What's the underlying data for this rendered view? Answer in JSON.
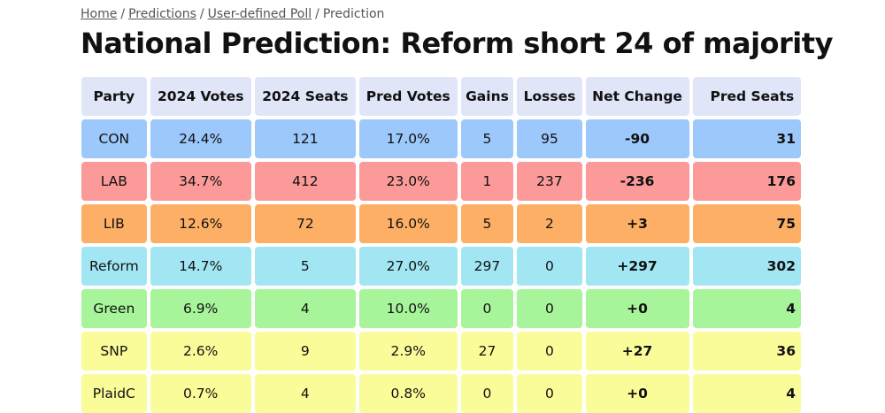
{
  "breadcrumb": {
    "home": "Home",
    "predictions": "Predictions",
    "poll": "User-defined Poll",
    "current": "Prediction",
    "separator": "/"
  },
  "title": "National Prediction: Reform short 24 of majority",
  "table": {
    "headers": [
      "Party",
      "2024 Votes",
      "2024 Seats",
      "Pred Votes",
      "Gains",
      "Losses",
      "Net Change",
      "Pred Seats"
    ],
    "rows": [
      {
        "party": "CON",
        "votes_2024": "24.4%",
        "seats_2024": "121",
        "pred_votes": "17.0%",
        "gains": "5",
        "losses": "95",
        "net_change": "-90",
        "pred_seats": "31",
        "color": "#9dc8fb"
      },
      {
        "party": "LAB",
        "votes_2024": "34.7%",
        "seats_2024": "412",
        "pred_votes": "23.0%",
        "gains": "1",
        "losses": "237",
        "net_change": "-236",
        "pred_seats": "176",
        "color": "#fb9a99"
      },
      {
        "party": "LIB",
        "votes_2024": "12.6%",
        "seats_2024": "72",
        "pred_votes": "16.0%",
        "gains": "5",
        "losses": "2",
        "net_change": "+3",
        "pred_seats": "75",
        "color": "#fdb065"
      },
      {
        "party": "Reform",
        "votes_2024": "14.7%",
        "seats_2024": "5",
        "pred_votes": "27.0%",
        "gains": "297",
        "losses": "0",
        "net_change": "+297",
        "pred_seats": "302",
        "color": "#a2e6f4"
      },
      {
        "party": "Green",
        "votes_2024": "6.9%",
        "seats_2024": "4",
        "pred_votes": "10.0%",
        "gains": "0",
        "losses": "0",
        "net_change": "+0",
        "pred_seats": "4",
        "color": "#a7f49a"
      },
      {
        "party": "SNP",
        "votes_2024": "2.6%",
        "seats_2024": "9",
        "pred_votes": "2.9%",
        "gains": "27",
        "losses": "0",
        "net_change": "+27",
        "pred_seats": "36",
        "color": "#fafc99"
      },
      {
        "party": "PlaidC",
        "votes_2024": "0.7%",
        "seats_2024": "4",
        "pred_votes": "0.8%",
        "gains": "0",
        "losses": "0",
        "net_change": "+0",
        "pred_seats": "4",
        "color": "#fafc99"
      }
    ]
  }
}
